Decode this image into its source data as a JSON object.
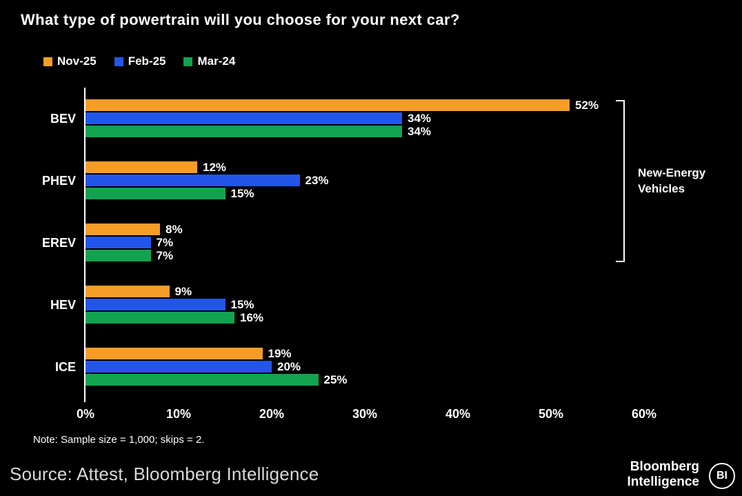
{
  "title": "What type of powertrain will you choose for your next car?",
  "legend": [
    {
      "label": "Nov-25",
      "color": "#F79D27"
    },
    {
      "label": "Feb-25",
      "color": "#2356E8"
    },
    {
      "label": "Mar-24",
      "color": "#12A350"
    }
  ],
  "chart_data": {
    "type": "bar",
    "orientation": "horizontal",
    "title": "What type of powertrain will you choose for your next car?",
    "categories": [
      "BEV",
      "PHEV",
      "EREV",
      "HEV",
      "ICE"
    ],
    "series": [
      {
        "name": "Nov-25",
        "color": "#F79D27",
        "values": [
          52,
          12,
          8,
          9,
          19
        ]
      },
      {
        "name": "Feb-25",
        "color": "#2356E8",
        "values": [
          34,
          23,
          7,
          15,
          20
        ]
      },
      {
        "name": "Mar-24",
        "color": "#12A350",
        "values": [
          34,
          15,
          7,
          16,
          25
        ]
      }
    ],
    "value_suffix": "%",
    "xlim": [
      0,
      60
    ],
    "x_ticks": [
      "0%",
      "10%",
      "20%",
      "30%",
      "40%",
      "50%",
      "60%"
    ],
    "grid": false,
    "legend_position": "top-left",
    "annotation": {
      "label": "New-Energy Vehicles",
      "spans": [
        "BEV",
        "PHEV",
        "EREV"
      ]
    }
  },
  "note": "Note: Sample size = 1,000; skips = 2.",
  "footer": {
    "source": "Source: Attest, Bloomberg Intelligence",
    "brand_line1": "Bloomberg",
    "brand_line2": "Intelligence",
    "logo": "BI"
  },
  "colors": {
    "background": "#000000",
    "text": "#FFFFFF",
    "source_text": "#D8D8D8",
    "orange": "#F79D27",
    "blue": "#2356E8",
    "green": "#12A350"
  }
}
